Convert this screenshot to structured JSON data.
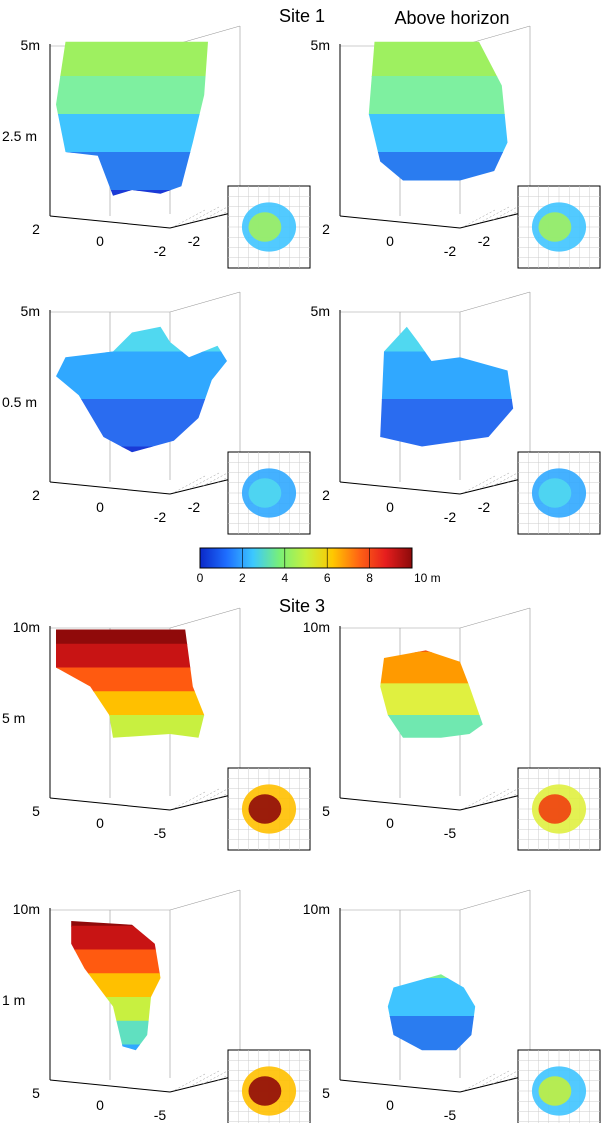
{
  "figure": {
    "site1_title": "Site 1",
    "site3_title": "Site 3",
    "column_header": "Above horizon"
  },
  "colorbar": {
    "ticks": [
      "0",
      "2",
      "4",
      "6",
      "8",
      "10 m"
    ],
    "stops": [
      "#0a28c8",
      "#1e6eff",
      "#3cc8ff",
      "#78f078",
      "#c8f03c",
      "#ffc800",
      "#ff6414",
      "#e61e1e",
      "#8c0a0a"
    ]
  },
  "chart_data": [
    {
      "type": "scatter",
      "site": "Site 1",
      "panel": "left",
      "height_label": "2.5 m",
      "z_top_label": "5m",
      "x_ticks": [
        "2",
        "0",
        "-2"
      ],
      "y_ticks": [
        "-2"
      ],
      "color_range_m": [
        0,
        5
      ],
      "colors": [
        "#1a3ad6",
        "#2a7cf0",
        "#3fc4ff",
        "#7ef0a0",
        "#9ef060"
      ]
    },
    {
      "type": "scatter",
      "site": "Site 1",
      "panel": "right",
      "z_top_label": "5m",
      "x_ticks": [
        "2",
        "0",
        "-2"
      ],
      "y_ticks": [
        "-2"
      ],
      "color_range_m": [
        0,
        5
      ],
      "colors": [
        "#1a3ad6",
        "#2a7cf0",
        "#3fc4ff",
        "#7ef0a0",
        "#9ef060"
      ]
    },
    {
      "type": "scatter",
      "site": "Site 1",
      "panel": "left",
      "height_label": "0.5 m",
      "z_top_label": "5m",
      "x_ticks": [
        "2",
        "0",
        "-2"
      ],
      "y_ticks": [
        "-2"
      ],
      "color_range_m": [
        0,
        3.5
      ],
      "colors": [
        "#1a3ad6",
        "#2a6cf0",
        "#30a8ff",
        "#50d8f0"
      ]
    },
    {
      "type": "scatter",
      "site": "Site 1",
      "panel": "right",
      "z_top_label": "5m",
      "x_ticks": [
        "2",
        "0",
        "-2"
      ],
      "y_ticks": [
        "-2"
      ],
      "color_range_m": [
        0,
        3.5
      ],
      "colors": [
        "#1a3ad6",
        "#2a6cf0",
        "#30a8ff",
        "#50d8f0"
      ]
    },
    {
      "type": "scatter",
      "site": "Site 3",
      "panel": "left",
      "height_label": "5 m",
      "z_top_label": "10m",
      "x_ticks": [
        "5",
        "0",
        "-5"
      ],
      "color_range_m": [
        0,
        10
      ],
      "colors": [
        "#1a3ad6",
        "#30a8ff",
        "#60e0c0",
        "#c8f040",
        "#ffc000",
        "#ff5a10",
        "#c81414",
        "#900a0a"
      ]
    },
    {
      "type": "scatter",
      "site": "Site 3",
      "panel": "right",
      "z_top_label": "10m",
      "x_ticks": [
        "5",
        "0",
        "-5"
      ],
      "color_range_m": [
        0,
        9
      ],
      "colors": [
        "#1a3ad6",
        "#30a8ff",
        "#70e8b0",
        "#e0f040",
        "#ff9a00",
        "#f04010"
      ]
    },
    {
      "type": "scatter",
      "site": "Site 3",
      "panel": "left",
      "height_label": "1 m",
      "z_top_label": "10m",
      "x_ticks": [
        "5",
        "0",
        "-5"
      ],
      "color_range_m": [
        0,
        10
      ],
      "colors": [
        "#1a3ad6",
        "#30a8ff",
        "#60e0c0",
        "#c8f040",
        "#ffc000",
        "#ff5a10",
        "#c81414",
        "#900a0a"
      ]
    },
    {
      "type": "scatter",
      "site": "Site 3",
      "panel": "right",
      "z_top_label": "10m",
      "x_ticks": [
        "5",
        "0",
        "-5"
      ],
      "color_range_m": [
        0,
        6
      ],
      "colors": [
        "#1a3ad6",
        "#2a7cf0",
        "#3fc4ff",
        "#80f090",
        "#c0f040"
      ]
    }
  ]
}
